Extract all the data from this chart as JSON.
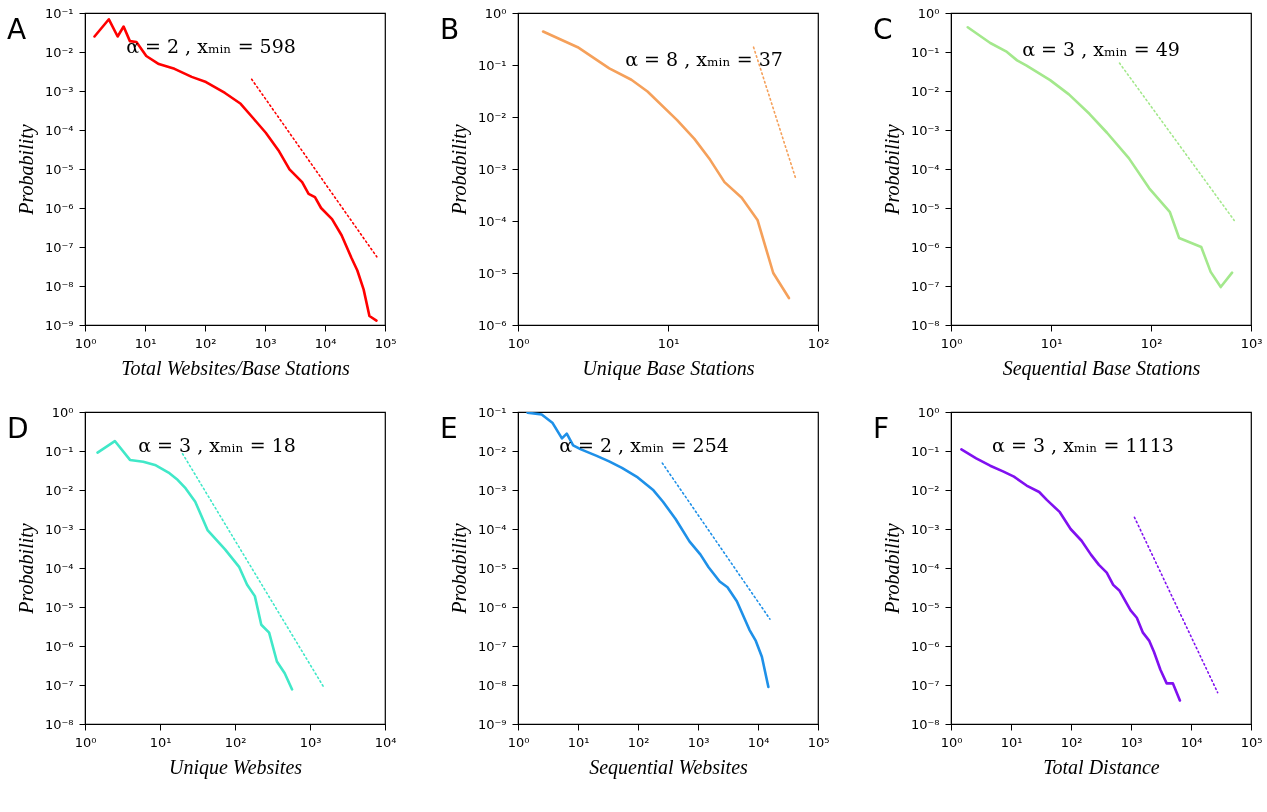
{
  "chart_data": [
    {
      "type": "line",
      "title": "A",
      "xlabel": "Total Websites/Base Stations",
      "ylabel": "Probability",
      "log": "xy",
      "annotations": [
        "α = 2 , xₘᵢₙ = 598"
      ],
      "xlim": [
        1,
        100000
      ],
      "ylim": [
        1e-09,
        0.1
      ],
      "xticks": [
        {
          "value": 1,
          "label": "10⁰"
        },
        {
          "value": 10,
          "label": "10¹"
        },
        {
          "value": 100,
          "label": "10²"
        },
        {
          "value": 1000,
          "label": "10³"
        },
        {
          "value": 10000,
          "label": "10⁴"
        },
        {
          "value": 100000,
          "label": "10⁵"
        }
      ],
      "yticks": [
        {
          "value": 1e-09,
          "label": "10⁻⁹"
        },
        {
          "value": 1e-08,
          "label": "10⁻⁸"
        },
        {
          "value": 1e-07,
          "label": "10⁻⁷"
        },
        {
          "value": 1e-06,
          "label": "10⁻⁶"
        },
        {
          "value": 1e-05,
          "label": "10⁻⁵"
        },
        {
          "value": 0.0001,
          "label": "10⁻⁴"
        },
        {
          "value": 0.001,
          "label": "10⁻³"
        },
        {
          "value": 0.01,
          "label": "10⁻²"
        },
        {
          "value": 0.1,
          "label": "10⁻¹"
        }
      ],
      "series": [
        {
          "color": "#ff0000",
          "x": [
            1.44,
            2.5,
            3.5,
            4.4,
            5.6,
            7.2,
            10.5,
            17,
            31,
            60,
            104,
            215,
            393,
            637,
            1030,
            1680,
            2560,
            4160,
            5330,
            6800,
            8600,
            13100,
            18900,
            27400,
            34600,
            44000,
            55000,
            72000
          ],
          "values": [
            0.025,
            0.069,
            0.025,
            0.045,
            0.019,
            0.018,
            0.0079,
            0.0049,
            0.0037,
            0.0023,
            0.0017,
            0.00089,
            0.00047,
            0.0002,
            8.5e-05,
            3e-05,
            9.8e-06,
            4.6e-06,
            2.3e-06,
            1.9e-06,
            1e-06,
            5.2e-07,
            2e-07,
            5.4e-08,
            2.5e-08,
            8.2e-09,
            1.7e-09,
            1.3e-09
          ]
        },
        {
          "type": "line",
          "line_style": "dotted",
          "color": "#ff0000",
          "x": [
            600,
            73000
          ],
          "values": [
            0.002,
            5.6e-08
          ]
        }
      ]
    },
    {
      "type": "line",
      "title": "B",
      "xlabel": "Unique Base Stations",
      "ylabel": "Probability",
      "log": "xy",
      "annotations": [
        "α = 8 , xₘᵢₙ = 37"
      ],
      "xlim": [
        1,
        100
      ],
      "ylim": [
        1e-06,
        1
      ],
      "xticks": [
        {
          "value": 1,
          "label": "10⁰"
        },
        {
          "value": 10,
          "label": "10¹"
        },
        {
          "value": 100,
          "label": "10²"
        }
      ],
      "yticks": [
        {
          "value": 1e-06,
          "label": "10⁻⁶"
        },
        {
          "value": 1e-05,
          "label": "10⁻⁵"
        },
        {
          "value": 0.0001,
          "label": "10⁻⁴"
        },
        {
          "value": 0.001,
          "label": "10⁻³"
        },
        {
          "value": 0.01,
          "label": "10⁻²"
        },
        {
          "value": 0.1,
          "label": "10⁻¹"
        },
        {
          "value": 1,
          "label": "10⁰"
        }
      ],
      "series": [
        {
          "color": "#f5a05a",
          "x": [
            1.47,
            2.5,
            4.06,
            5.7,
            7.3,
            11.5,
            15,
            19.1,
            23.8,
            31,
            39.5,
            50.3,
            64
          ],
          "values": [
            0.44,
            0.22,
            0.086,
            0.052,
            0.031,
            0.0087,
            0.0038,
            0.0015,
            0.00056,
            0.00028,
            0.000105,
            1e-05,
            3.3e-06
          ]
        },
        {
          "type": "line",
          "line_style": "dotted",
          "color": "#f5a05a",
          "x": [
            37.2,
            71
          ],
          "values": [
            0.22,
            0.00066
          ]
        }
      ]
    },
    {
      "type": "line",
      "title": "C",
      "xlabel": "Sequential Base Stations",
      "ylabel": "Probability",
      "log": "xy",
      "annotations": [
        "α = 3 , xₘᵢₙ = 49"
      ],
      "xlim": [
        1,
        1000
      ],
      "ylim": [
        1e-08,
        1
      ],
      "xticks": [
        {
          "value": 1,
          "label": "10⁰"
        },
        {
          "value": 10,
          "label": "10¹"
        },
        {
          "value": 100,
          "label": "10²"
        },
        {
          "value": 1000,
          "label": "10³"
        }
      ],
      "yticks": [
        {
          "value": 1e-08,
          "label": "10⁻⁸"
        },
        {
          "value": 1e-07,
          "label": "10⁻⁷"
        },
        {
          "value": 1e-06,
          "label": "10⁻⁶"
        },
        {
          "value": 1e-05,
          "label": "10⁻⁵"
        },
        {
          "value": 0.0001,
          "label": "10⁻⁴"
        },
        {
          "value": 0.001,
          "label": "10⁻³"
        },
        {
          "value": 0.01,
          "label": "10⁻²"
        },
        {
          "value": 0.1,
          "label": "10⁻¹"
        },
        {
          "value": 1,
          "label": "10⁰"
        }
      ],
      "series": [
        {
          "color": "#a3e88c",
          "x": [
            1.47,
            2.47,
            3.55,
            4.58,
            5.7,
            9.8,
            15.1,
            24.2,
            36.3,
            60,
            96,
            154,
            191,
            318,
            395,
            498,
            647
          ],
          "values": [
            0.43,
            0.17,
            0.104,
            0.061,
            0.045,
            0.019,
            0.0082,
            0.0026,
            0.00085,
            0.00019,
            3.2e-05,
            8e-06,
            1.7e-06,
            1e-06,
            2.3e-07,
            9.4e-08,
            2.2e-07
          ]
        },
        {
          "type": "line",
          "line_style": "dotted",
          "color": "#a3e88c",
          "x": [
            48.4,
            680
          ],
          "values": [
            0.052,
            4.8e-06
          ]
        }
      ]
    },
    {
      "type": "line",
      "title": "D",
      "xlabel": "Unique Websites",
      "ylabel": "Probability",
      "log": "xy",
      "annotations": [
        "α = 3 , xₘᵢₙ = 18"
      ],
      "xlim": [
        1,
        10000
      ],
      "ylim": [
        1e-08,
        1
      ],
      "xticks": [
        {
          "value": 1,
          "label": "10⁰"
        },
        {
          "value": 10,
          "label": "10¹"
        },
        {
          "value": 100,
          "label": "10²"
        },
        {
          "value": 1000,
          "label": "10³"
        },
        {
          "value": 10000,
          "label": "10⁴"
        }
      ],
      "yticks": [
        {
          "value": 1e-08,
          "label": "10⁻⁸"
        },
        {
          "value": 1e-07,
          "label": "10⁻⁷"
        },
        {
          "value": 1e-06,
          "label": "10⁻⁶"
        },
        {
          "value": 1e-05,
          "label": "10⁻⁵"
        },
        {
          "value": 0.0001,
          "label": "10⁻⁴"
        },
        {
          "value": 0.001,
          "label": "10⁻³"
        },
        {
          "value": 0.01,
          "label": "10⁻²"
        },
        {
          "value": 0.1,
          "label": "10⁻¹"
        },
        {
          "value": 1,
          "label": "10⁰"
        }
      ],
      "series": [
        {
          "color": "#40e8c8",
          "x": [
            1.47,
            2.5,
            3.98,
            5.98,
            8.8,
            13,
            17.3,
            22,
            29.5,
            43.3,
            73.6,
            114,
            145,
            184,
            224,
            285,
            362,
            460,
            577
          ],
          "values": [
            0.091,
            0.18,
            0.059,
            0.053,
            0.043,
            0.028,
            0.018,
            0.011,
            0.005,
            0.00092,
            0.0003,
            0.000105,
            3.7e-05,
            1.9e-05,
            3.5e-06,
            2.2e-06,
            4e-07,
            2e-07,
            7.7e-08
          ]
        },
        {
          "type": "line",
          "line_style": "dotted",
          "color": "#40e8c8",
          "x": [
            20,
            1520
          ],
          "values": [
            0.085,
            8.9e-08
          ]
        }
      ]
    },
    {
      "type": "line",
      "title": "E",
      "xlabel": "Sequential Websites",
      "ylabel": "Probability",
      "log": "xy",
      "annotations": [
        "α = 2 , xₘᵢₙ = 254"
      ],
      "xlim": [
        1,
        100000
      ],
      "ylim": [
        1e-09,
        0.1
      ],
      "xticks": [
        {
          "value": 1,
          "label": "10⁰"
        },
        {
          "value": 10,
          "label": "10¹"
        },
        {
          "value": 100,
          "label": "10²"
        },
        {
          "value": 1000,
          "label": "10³"
        },
        {
          "value": 10000,
          "label": "10⁴"
        },
        {
          "value": 100000,
          "label": "10⁵"
        }
      ],
      "yticks": [
        {
          "value": 1e-09,
          "label": "10⁻⁹"
        },
        {
          "value": 1e-08,
          "label": "10⁻⁸"
        },
        {
          "value": 1e-07,
          "label": "10⁻⁷"
        },
        {
          "value": 1e-06,
          "label": "10⁻⁶"
        },
        {
          "value": 1e-05,
          "label": "10⁻⁵"
        },
        {
          "value": 0.0001,
          "label": "10⁻⁴"
        },
        {
          "value": 0.001,
          "label": "10⁻³"
        },
        {
          "value": 0.01,
          "label": "10⁻²"
        },
        {
          "value": 0.1,
          "label": "10⁻¹"
        }
      ],
      "series": [
        {
          "color": "#1e90e8",
          "x": [
            1.44,
            2.48,
            3.78,
            5.4,
            6.5,
            8.3,
            11.2,
            20.5,
            33,
            54,
            99,
            181,
            261,
            423,
            720,
            1100,
            1500,
            2300,
            3100,
            4440,
            7200,
            9200,
            11600,
            14900
          ],
          "values": [
            0.096,
            0.086,
            0.052,
            0.021,
            0.028,
            0.014,
            0.011,
            0.0075,
            0.0054,
            0.0037,
            0.0021,
            0.00098,
            0.0005,
            0.00018,
            4.8e-05,
            2.2e-05,
            1.05e-05,
            4.5e-06,
            3.2e-06,
            1.4e-06,
            2.6e-07,
            1.35e-07,
            5.3e-08,
            8.9e-09
          ]
        },
        {
          "type": "line",
          "line_style": "dotted",
          "color": "#1e90e8",
          "x": [
            254,
            15800
          ],
          "values": [
            0.0049,
            4.9e-07
          ]
        }
      ]
    },
    {
      "type": "line",
      "title": "F",
      "xlabel": "Total Distance",
      "ylabel": "Probability",
      "log": "xy",
      "annotations": [
        "α = 3 , xₘᵢₙ = 1113"
      ],
      "xlim": [
        1,
        100000
      ],
      "ylim": [
        1e-08,
        1
      ],
      "xticks": [
        {
          "value": 1,
          "label": "10⁰"
        },
        {
          "value": 10,
          "label": "10¹"
        },
        {
          "value": 100,
          "label": "10²"
        },
        {
          "value": 1000,
          "label": "10³"
        },
        {
          "value": 10000,
          "label": "10⁴"
        },
        {
          "value": 100000,
          "label": "10⁵"
        }
      ],
      "yticks": [
        {
          "value": 1e-08,
          "label": "10⁻⁸"
        },
        {
          "value": 1e-07,
          "label": "10⁻⁷"
        },
        {
          "value": 1e-06,
          "label": "10⁻⁶"
        },
        {
          "value": 1e-05,
          "label": "10⁻⁵"
        },
        {
          "value": 0.0001,
          "label": "10⁻⁴"
        },
        {
          "value": 0.001,
          "label": "10⁻³"
        },
        {
          "value": 0.01,
          "label": "10⁻²"
        },
        {
          "value": 0.1,
          "label": "10⁻¹"
        },
        {
          "value": 1,
          "label": "10⁰"
        }
      ],
      "series": [
        {
          "color": "#8010f0",
          "x": [
            1.49,
            2.63,
            4.5,
            7.35,
            11.2,
            18.2,
            29.5,
            39.9,
            65.2,
            98.5,
            150,
            215,
            292,
            394,
            505,
            646,
            985,
            1250,
            1580,
            2020,
            2420,
            3080,
            3930,
            5000,
            6530
          ],
          "values": [
            0.11,
            0.065,
            0.042,
            0.03,
            0.022,
            0.013,
            0.0089,
            0.0055,
            0.0027,
            0.001,
            0.0005,
            0.00022,
            0.00012,
            7.6e-05,
            3.7e-05,
            2.6e-05,
            8.2e-06,
            5.3e-06,
            2.2e-06,
            1.35e-06,
            7e-07,
            2.5e-07,
            1.1e-07,
            1.1e-07,
            4e-08
          ]
        },
        {
          "type": "line",
          "line_style": "dotted",
          "color": "#8010f0",
          "x": [
            1140,
            27800
          ],
          "values": [
            0.002,
            6.4e-08
          ]
        }
      ]
    }
  ]
}
